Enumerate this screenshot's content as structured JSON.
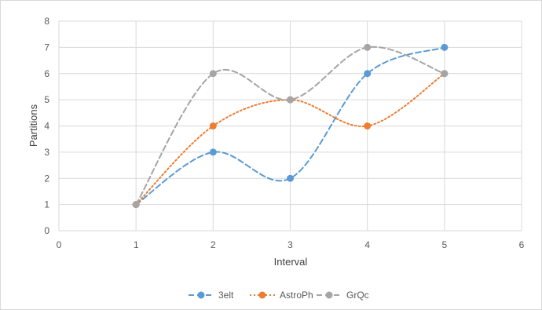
{
  "chart_data": {
    "type": "line",
    "smooth": true,
    "title": "",
    "xlabel": "Interval",
    "ylabel": "Partitions",
    "xlim": [
      0,
      6
    ],
    "ylim": [
      0,
      8
    ],
    "xticks": [
      0,
      1,
      2,
      3,
      4,
      5,
      6
    ],
    "yticks": [
      0,
      1,
      2,
      3,
      4,
      5,
      6,
      7,
      8
    ],
    "grid": true,
    "legend_position": "bottom",
    "x": [
      1,
      2,
      3,
      4,
      5
    ],
    "series": [
      {
        "name": "3elt",
        "values": [
          1,
          3,
          2,
          6,
          7
        ],
        "color": "#5b9bd5",
        "dash": "dashed"
      },
      {
        "name": "AstroPh",
        "values": [
          1,
          4,
          5,
          4,
          6
        ],
        "color": "#ed7d31",
        "dash": "dotted"
      },
      {
        "name": "GrQc",
        "values": [
          1,
          6,
          5,
          7,
          6
        ],
        "color": "#a5a5a5",
        "dash": "dashed"
      }
    ]
  }
}
